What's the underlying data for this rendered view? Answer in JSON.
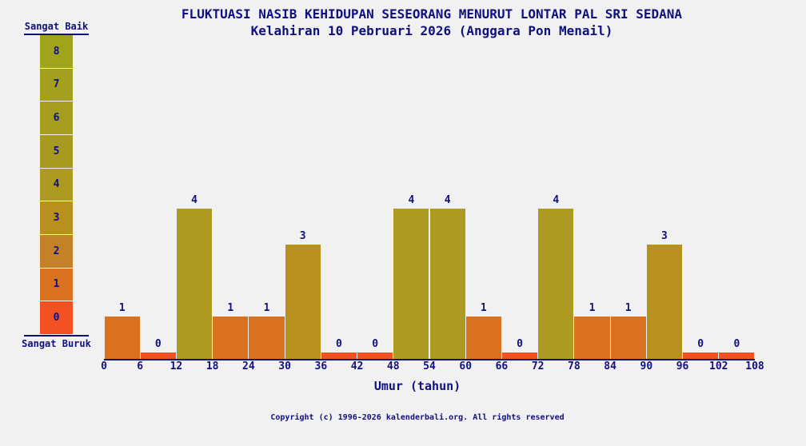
{
  "page": {
    "background_color": "#f1f1f1",
    "text_color": "#10107E"
  },
  "chart": {
    "title": "FLUKTUASI NASIB KEHIDUPAN SESEORANG MENURUT LONTAR PAL SRI SEDANA",
    "subtitle": "Kelahiran 10 Pebruari 2026 (Anggara Pon Menail)",
    "xlabel": "Umur (tahun)",
    "legend": {
      "top_label": "Sangat Baik",
      "bottom_label": "Sangat Buruk",
      "values_top_to_bottom": [
        8,
        7,
        6,
        5,
        4,
        3,
        2,
        1,
        0
      ]
    }
  },
  "chart_data": {
    "type": "bar",
    "title": "FLUKTUASI NASIB KEHIDUPAN SESEORANG MENURUT LONTAR PAL SRI SEDANA",
    "subtitle": "Kelahiran 10 Pebruari 2026 (Anggara Pon Menail)",
    "xlabel": "Umur (tahun)",
    "ylabel": "",
    "ylim": [
      0,
      8
    ],
    "grid": false,
    "legend_position": "left-vertical-scale",
    "x_ticks": [
      0,
      6,
      12,
      18,
      24,
      30,
      36,
      42,
      48,
      54,
      60,
      66,
      72,
      78,
      84,
      90,
      96,
      102,
      108
    ],
    "categories": [
      "0-6",
      "6-12",
      "12-18",
      "18-24",
      "24-30",
      "30-36",
      "36-42",
      "42-48",
      "48-54",
      "54-60",
      "60-66",
      "66-72",
      "72-78",
      "78-84",
      "84-90",
      "90-96",
      "96-102",
      "102-108"
    ],
    "values": [
      1,
      0,
      4,
      1,
      1,
      3,
      0,
      0,
      4,
      4,
      1,
      0,
      4,
      1,
      1,
      3,
      0,
      0
    ],
    "scale_colors_by_value": [
      "#F25223",
      "#D9711F",
      "#C48126",
      "#B7901E",
      "#AD9A20",
      "#A89A1F",
      "#A59D1E",
      "#A3A01E",
      "#A0A31C"
    ]
  },
  "footer": {
    "copyright": "Copyright (c) 1996-2026 kalenderbali.org. All rights reserved"
  }
}
